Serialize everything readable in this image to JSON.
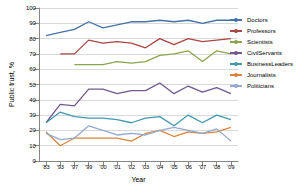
{
  "chart_data": {
    "type": "line",
    "x_label": "Year",
    "y_label": "Public trust, %",
    "categories": [
      "'83",
      "'93",
      "'97",
      "'99",
      "'00",
      "'01",
      "'02",
      "'03",
      "'04",
      "'05",
      "'06",
      "'07",
      "'08",
      "'09"
    ],
    "series": [
      {
        "name": "Doctors",
        "color": "#4572A7",
        "values": [
          82,
          84,
          86,
          91,
          87,
          89,
          91,
          91,
          92,
          91,
          92,
          90,
          92,
          92
        ]
      },
      {
        "name": "Professors",
        "color": "#AA4643",
        "values": [
          null,
          70,
          70,
          79,
          77,
          78,
          77,
          74,
          80,
          76,
          80,
          78,
          79,
          80
        ]
      },
      {
        "name": "Scientists",
        "color": "#89A54E",
        "values": [
          null,
          null,
          63,
          63,
          63,
          65,
          64,
          65,
          69,
          70,
          72,
          65,
          72,
          70
        ]
      },
      {
        "name": "CivilServants",
        "color": "#71588F",
        "values": [
          25,
          37,
          36,
          47,
          47,
          44,
          46,
          46,
          51,
          44,
          49,
          45,
          48,
          44
        ]
      },
      {
        "name": "BusinessLeaders",
        "color": "#4198AF",
        "values": [
          25,
          32,
          29,
          28,
          28,
          27,
          25,
          28,
          29,
          23,
          30,
          25,
          30,
          27
        ]
      },
      {
        "name": "Journalists",
        "color": "#DB843D",
        "values": [
          19,
          10,
          15,
          15,
          15,
          15,
          13,
          18,
          20,
          16,
          19,
          18,
          19,
          22
        ]
      },
      {
        "name": "Politicians",
        "color": "#93A9CF",
        "values": [
          18,
          14,
          15,
          23,
          20,
          17,
          18,
          17,
          20,
          22,
          20,
          18,
          21,
          13
        ]
      }
    ],
    "ylim": [
      0,
      100
    ],
    "yticks": [
      0,
      10,
      20,
      30,
      40,
      50,
      60,
      70,
      80,
      90,
      100
    ],
    "grid": true,
    "legend": "right",
    "line_style": "solid"
  }
}
